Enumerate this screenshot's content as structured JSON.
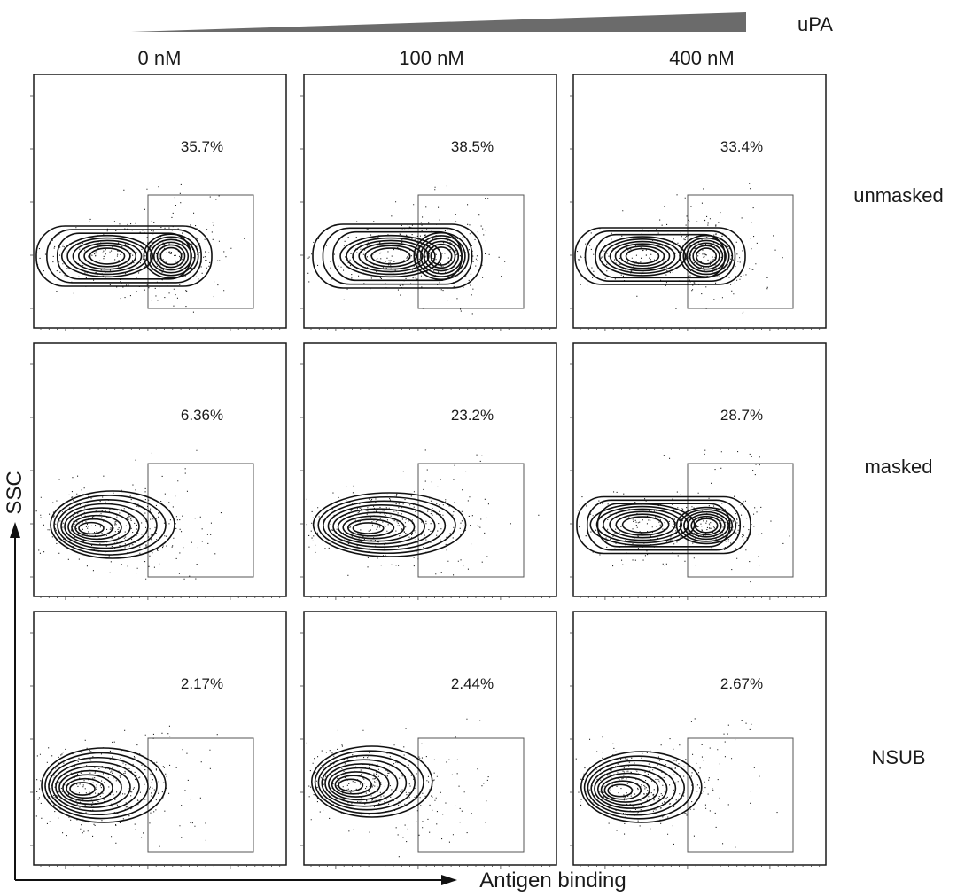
{
  "chart_data": {
    "type": "scatter",
    "subtype": "flow-cytometry-contour-grid",
    "title": "",
    "gradient_label": "uPA",
    "xlabel": "Antigen binding",
    "ylabel": "SSC",
    "columns": [
      "0 nM",
      "100 nM",
      "400 nM"
    ],
    "rows": [
      "unmasked",
      "masked",
      "NSUB"
    ],
    "panels": [
      {
        "row": "unmasked",
        "column": "0 nM",
        "gate_percent": "35.7%",
        "populations": 2
      },
      {
        "row": "unmasked",
        "column": "100 nM",
        "gate_percent": "38.5%",
        "populations": 2
      },
      {
        "row": "unmasked",
        "column": "400 nM",
        "gate_percent": "33.4%",
        "populations": 2
      },
      {
        "row": "masked",
        "column": "0 nM",
        "gate_percent": "6.36%",
        "populations": 1
      },
      {
        "row": "masked",
        "column": "100 nM",
        "gate_percent": "23.2%",
        "populations": 1
      },
      {
        "row": "masked",
        "column": "400 nM",
        "gate_percent": "28.7%",
        "populations": 2
      },
      {
        "row": "NSUB",
        "column": "0 nM",
        "gate_percent": "2.17%",
        "populations": 1
      },
      {
        "row": "NSUB",
        "column": "100 nM",
        "gate_percent": "2.44%",
        "populations": 1
      },
      {
        "row": "NSUB",
        "column": "400 nM",
        "gate_percent": "2.67%",
        "populations": 1
      }
    ]
  },
  "colors": {
    "contour": "#111111",
    "frame": "#1a1a1a",
    "gate": "#555555",
    "gradient": "#6b6b6b"
  }
}
